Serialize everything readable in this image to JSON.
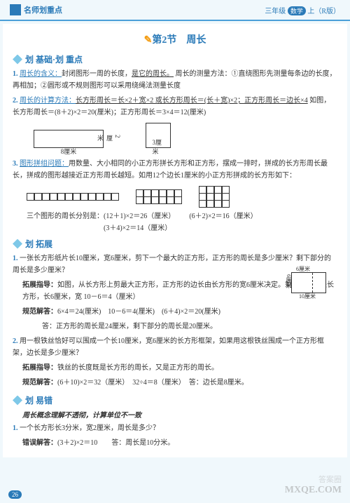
{
  "header": {
    "left": "名师划重点",
    "right_grade": "三年级",
    "right_subject": "数学",
    "right_vol": "上（R版）"
  },
  "title": {
    "prefix": "第2节",
    "main": "周长"
  },
  "sh1": "划 基础·划 重点",
  "i1": {
    "n": "1.",
    "k": "周长的含义：",
    "t1": "封闭图形一周的长度，",
    "u": "是它的周长。",
    "t2": "周长的测量方法：①直绕图形先测量每条边的长度，再相加；②圆形或不规则图形可以采用绕绳法测量长度"
  },
  "i2": {
    "n": "2.",
    "k": "周长的计算方法：",
    "u": "长方形周长＝长×2＋宽×2 或长方形周长＝(长＋宽)×2；正方形周长＝边长×4",
    "t": "如图，长方形周长＝(8＋2)×2＝20(厘米)；正方形周长＝3×4＝12(厘米)"
  },
  "d1": {
    "l1": "8厘米",
    "l2": "2厘米",
    "l3": "3厘米"
  },
  "i3": {
    "n": "3.",
    "k": "图形拼组问题：",
    "t": "用数量、大小相同的小正方形拼长方形和正方形，摆成一排时，拼成的长方形周长最长，拼成的图形越接近正方形周长越短。如用12个边长1厘米的小正方形拼成的长方形如下："
  },
  "calc1": {
    "a": "三个图形的周长分别是：(12＋1)×2＝26（厘米）",
    "b": "(6＋2)×2＝16（厘米）",
    "c": "(3＋4)×2＝14（厘米）"
  },
  "sh2": "划 拓展",
  "e1": {
    "n": "1.",
    "q": "一张长方形纸片长10厘米，宽6厘米，剪下一个最大的正方形，正方形的周长是多少厘米？剩下部分的周长是多少厘米？",
    "g": "拓展指导：",
    "gt": "如图，从长方形上剪最大正方形，正方形的边长由长方形的宽6厘米决定。剩下的图形是长方形，长6厘米，宽 10－6＝4（厘米）",
    "a": "规范解答：",
    "at": "6×4＝24(厘米)　10－6＝4(厘米)　(6＋4)×2＝20(厘米)",
    "ans": "答：正方形的周长是24厘米，剩下部分的周长是20厘米。"
  },
  "e1d": {
    "l1": "6厘米",
    "l2": "6厘米",
    "l3": "10厘米"
  },
  "e2": {
    "n": "2.",
    "q": "用一根铁丝恰好可以围成一个长10厘米，宽6厘米的长方形框架，如果用这根铁丝围成一个正方形框架，边长是多少厘米？",
    "g": "拓展指导：",
    "gt": "铁丝的长度既是长方形的周长，又是正方形的周长。",
    "a": "规范解答：",
    "at": "(6＋10)×2＝32（厘米）　32÷4＝8（厘米）　答：边长是8厘米。"
  },
  "sh3": "划 易错",
  "err": {
    "h": "周长概念理解不透彻，计算单位不一致",
    "n": "1.",
    "q": "一个长方形长3分米，宽2厘米，周长是多少？",
    "a": "错误解答：",
    "at": "(3＋2)×2＝10",
    "ans": "答：周长是10分米。"
  },
  "pn": "26"
}
